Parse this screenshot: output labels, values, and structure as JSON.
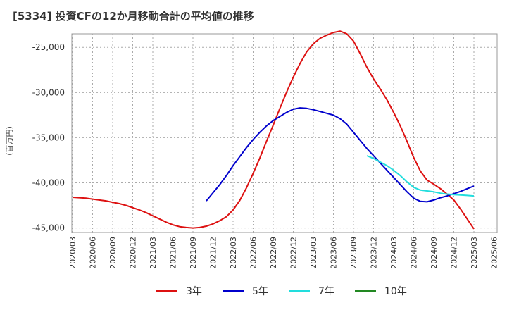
{
  "chart_data": {
    "type": "line",
    "title": "[5334]  投資CFの12か月移動合計の平均値の推移",
    "ylabel": "(百万円)",
    "xlabel": "",
    "ylim": [
      -45500,
      -23500
    ],
    "y_ticks": [
      -25000,
      -30000,
      -35000,
      -40000,
      -45000
    ],
    "y_tick_labels": [
      "-25,000",
      "-30,000",
      "-35,000",
      "-40,000",
      "-45,000"
    ],
    "x_tick_labels": [
      "2020/03",
      "2020/06",
      "2020/09",
      "2020/12",
      "2021/03",
      "2021/06",
      "2021/09",
      "2021/12",
      "2022/03",
      "2022/06",
      "2022/09",
      "2022/12",
      "2023/03",
      "2023/06",
      "2023/09",
      "2023/12",
      "2024/03",
      "2024/06",
      "2024/09",
      "2024/12",
      "2025/03",
      "2025/06"
    ],
    "grid": true,
    "legend_position": "bottom",
    "series": [
      {
        "name": "3年",
        "color": "#dd1111",
        "start_index": 0,
        "values": [
          -41600,
          -41650,
          -41700,
          -41800,
          -41900,
          -42000,
          -42150,
          -42300,
          -42500,
          -42750,
          -43000,
          -43300,
          -43650,
          -44000,
          -44350,
          -44650,
          -44850,
          -44950,
          -45000,
          -44950,
          -44800,
          -44550,
          -44200,
          -43750,
          -43000,
          -41950,
          -40550,
          -38950,
          -37250,
          -35400,
          -33600,
          -31750,
          -29950,
          -28300,
          -26800,
          -25500,
          -24600,
          -24000,
          -23650,
          -23350,
          -23200,
          -23500,
          -24300,
          -25700,
          -27200,
          -28500,
          -29600,
          -30800,
          -32200,
          -33700,
          -35400,
          -37200,
          -38700,
          -39700,
          -40150,
          -40650,
          -41250,
          -41900,
          -42900,
          -44000,
          -45100
        ]
      },
      {
        "name": "5年",
        "color": "#0000cc",
        "start_index": 20,
        "values": [
          -42000,
          -41100,
          -40200,
          -39200,
          -38100,
          -37100,
          -36100,
          -35200,
          -34400,
          -33700,
          -33100,
          -32650,
          -32200,
          -31850,
          -31700,
          -31750,
          -31900,
          -32100,
          -32300,
          -32500,
          -32900,
          -33500,
          -34400,
          -35300,
          -36200,
          -37000,
          -37800,
          -38600,
          -39400,
          -40200,
          -41000,
          -41700,
          -42050,
          -42100,
          -41900,
          -41650,
          -41450,
          -41200,
          -40950,
          -40650,
          -40350
        ]
      },
      {
        "name": "7年",
        "color": "#22dddd",
        "start_index": 44,
        "values": [
          -37000,
          -37300,
          -37700,
          -38100,
          -38600,
          -39200,
          -39900,
          -40500,
          -40800,
          -40900,
          -41000,
          -41150,
          -41250,
          -41300,
          -41350,
          -41400,
          -41450
        ]
      },
      {
        "name": "10年",
        "color": "#228822",
        "start_index": 60,
        "values": []
      }
    ]
  }
}
